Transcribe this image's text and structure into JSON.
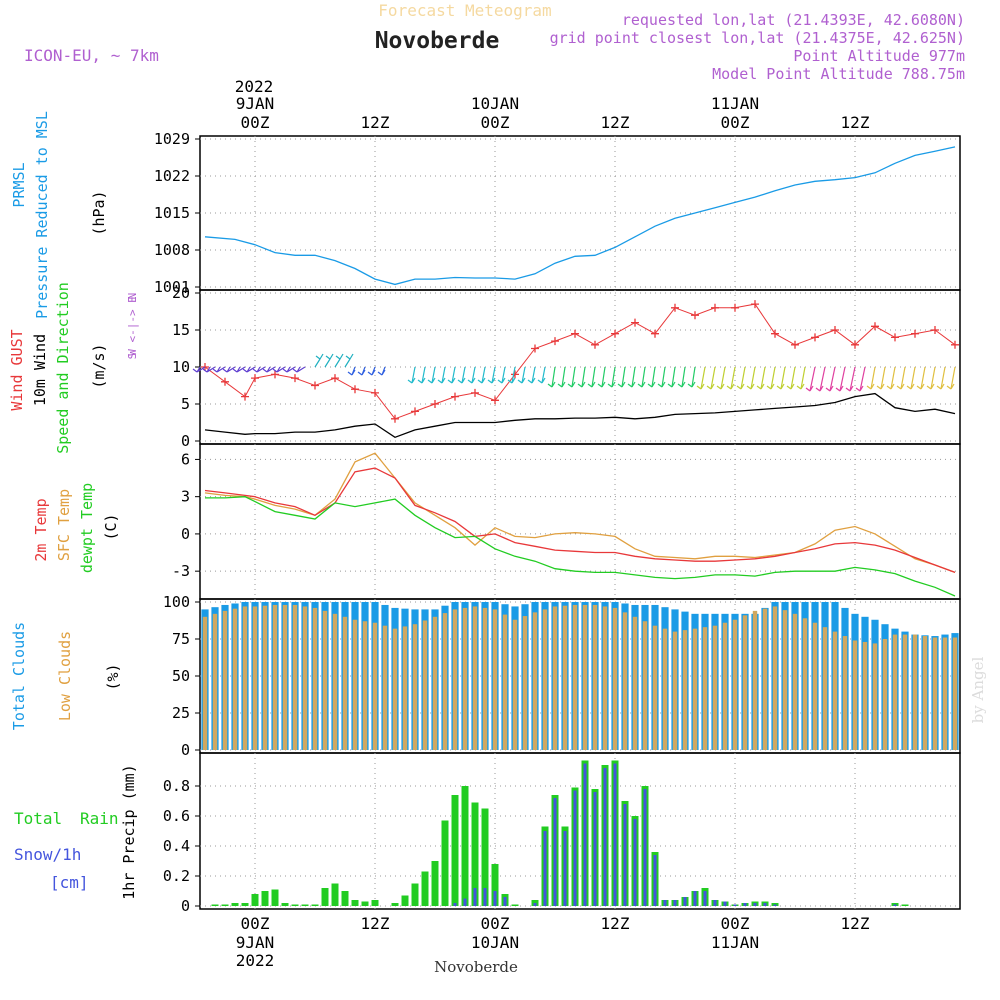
{
  "header": {
    "subtitle": "Forecast Meteogram",
    "location": "Novoberde",
    "model": "ICON-EU, ~ 7km",
    "requested": "requested lon,lat (21.4393E, 42.6080N)",
    "grid_point": "grid point closest lon,lat (21.4375E, 42.625N)",
    "point_alt": "Point Altitude 977m",
    "model_alt": "Model Point Altitude 788.75m",
    "footer_location": "Novoberde",
    "credit": "by Angel"
  },
  "colors": {
    "blue": "#1a9be6",
    "red": "#e8383a",
    "orange": "#e0a040",
    "green": "#22cc22",
    "purple": "#b060d0",
    "black": "#000000",
    "cloud_total": "#1a9be6",
    "cloud_low": "#cfa860",
    "rain": "#22cc22",
    "snow": "#4455dd"
  },
  "time_axis": {
    "top_year": "2022",
    "ticks": [
      {
        "h": 0,
        "top": "9JAN",
        "bot": "00Z"
      },
      {
        "h": 12,
        "top": "",
        "bot": "12Z"
      },
      {
        "h": 24,
        "top": "10JAN",
        "bot": "00Z"
      },
      {
        "h": 36,
        "top": "",
        "bot": "12Z"
      },
      {
        "h": 48,
        "top": "11JAN",
        "bot": "00Z"
      },
      {
        "h": 60,
        "top": "",
        "bot": "12Z"
      }
    ],
    "bottom_ticks": [
      {
        "h": 0,
        "a": "00Z",
        "b": "9JAN",
        "c": "2022"
      },
      {
        "h": 12,
        "a": "12Z",
        "b": "",
        "c": ""
      },
      {
        "h": 24,
        "a": "00Z",
        "b": "10JAN",
        "c": ""
      },
      {
        "h": 36,
        "a": "12Z",
        "b": "",
        "c": ""
      },
      {
        "h": 48,
        "a": "00Z",
        "b": "11JAN",
        "c": ""
      },
      {
        "h": 60,
        "a": "12Z",
        "b": "",
        "c": ""
      }
    ],
    "range": [
      -5.5,
      70.5
    ]
  },
  "panels": {
    "pressure": {
      "title1": "PRMSL",
      "title2": "Pressure Reduced to MSL",
      "unit": "(hPa)",
      "yticks": [
        "1001",
        "1008",
        "1015",
        "1022",
        "1029"
      ],
      "ylim": [
        1001,
        1029
      ]
    },
    "wind": {
      "title_gust": "Wind GUST",
      "title_wind": "10m Wind",
      "title_dir": "Speed and Direction",
      "unit": "(m/s)",
      "yticks": [
        "0",
        "5",
        "10",
        "15",
        "20"
      ],
      "ylim": [
        0,
        20
      ],
      "compass_n": "N",
      "compass_s": "S",
      "compass_we": "W <-|-> E"
    },
    "temp": {
      "title_2m": "2m Temp",
      "title_sfc": "SFC Temp",
      "title_dew": "dewpt Temp",
      "unit": "(C)",
      "yticks": [
        "-3",
        "0",
        "3",
        "6"
      ],
      "ylim": [
        -5,
        7
      ]
    },
    "clouds": {
      "title_total": "Total Clouds",
      "title_low": "Low Clouds",
      "unit": "(%)",
      "yticks": [
        "0",
        "25",
        "50",
        "75",
        "100"
      ],
      "ylim": [
        0,
        100
      ]
    },
    "precip": {
      "title_rain1": "Total",
      "title_rain2": "Rain",
      "title_snow": "Snow/1h",
      "title_cm": "[cm]",
      "unit": "1hr Precip (mm)",
      "yticks": [
        "0",
        "0.2",
        "0.4",
        "0.6",
        "0.8"
      ],
      "ylim": [
        0,
        1
      ]
    }
  },
  "chart_data": [
    {
      "type": "line",
      "title": "PRMSL Pressure Reduced to MSL",
      "ylabel": "hPa",
      "x": [
        -5,
        -2,
        0,
        2,
        4,
        6,
        8,
        10,
        12,
        14,
        16,
        18,
        20,
        22,
        24,
        26,
        28,
        30,
        32,
        34,
        36,
        38,
        40,
        42,
        44,
        46,
        48,
        50,
        52,
        54,
        56,
        58,
        60,
        62,
        64,
        66,
        68,
        70
      ],
      "values": [
        1010.5,
        1010,
        1009,
        1007.5,
        1007,
        1007,
        1006,
        1004.5,
        1002.5,
        1001.5,
        1002.5,
        1002.5,
        1002.8,
        1002.7,
        1002.7,
        1002.5,
        1003.5,
        1005.5,
        1006.8,
        1007,
        1008.5,
        1010.5,
        1012.5,
        1014,
        1015,
        1016,
        1017,
        1018,
        1019.2,
        1020.3,
        1021,
        1021.3,
        1021.7,
        1022.6,
        1024.4,
        1025.9,
        1026.7,
        1027.5
      ]
    },
    {
      "type": "line",
      "title": "Wind GUST / 10m Wind Speed",
      "ylabel": "m/s",
      "x": [
        -5,
        -3,
        -1,
        0,
        2,
        4,
        6,
        8,
        10,
        12,
        14,
        16,
        18,
        20,
        22,
        24,
        26,
        28,
        30,
        32,
        34,
        36,
        38,
        40,
        42,
        44,
        46,
        48,
        50,
        52,
        54,
        56,
        58,
        60,
        62,
        64,
        66,
        68,
        70
      ],
      "series": [
        {
          "name": "Wind GUST",
          "values": [
            10,
            8,
            6,
            8.5,
            9,
            8.5,
            7.5,
            8.5,
            7,
            6.5,
            3,
            4,
            5,
            6,
            6.5,
            5.5,
            9,
            12.5,
            13.5,
            14.5,
            13,
            14.5,
            16,
            14.5,
            18,
            17,
            18,
            18,
            18.5,
            14.5,
            13,
            14,
            15,
            13,
            15.5,
            14,
            14.5,
            15,
            13
          ]
        },
        {
          "name": "10m Wind",
          "values": [
            1.5,
            1.2,
            0.9,
            1,
            1,
            1.2,
            1.2,
            1.5,
            2,
            2.3,
            0.5,
            1.5,
            2,
            2.5,
            2.5,
            2.5,
            2.8,
            3,
            3,
            3.1,
            3.1,
            3.2,
            3,
            3.2,
            3.6,
            3.7,
            3.8,
            4,
            4.2,
            4.4,
            4.6,
            4.8,
            5.2,
            6,
            6.4,
            4.5,
            4,
            4.3,
            3.7
          ]
        }
      ],
      "ylim": [
        0,
        20
      ]
    },
    {
      "type": "line",
      "title": "2m Temp / SFC Temp / dewpt Temp",
      "ylabel": "C",
      "x": [
        -5,
        -3,
        -1,
        0,
        2,
        4,
        6,
        8,
        10,
        12,
        14,
        16,
        18,
        20,
        22,
        24,
        26,
        28,
        30,
        32,
        34,
        36,
        38,
        40,
        42,
        44,
        46,
        48,
        50,
        52,
        54,
        56,
        58,
        60,
        62,
        64,
        66,
        68,
        70
      ],
      "series": [
        {
          "name": "2m Temp",
          "values": [
            3.5,
            3.3,
            3.1,
            3,
            2.5,
            2.2,
            1.5,
            2.5,
            5,
            5.3,
            4.5,
            2.3,
            1.7,
            1,
            -0.2,
            0,
            -0.7,
            -1,
            -1.3,
            -1.4,
            -1.5,
            -1.5,
            -1.8,
            -2,
            -2.1,
            -2.2,
            -2.2,
            -2.1,
            -2,
            -1.8,
            -1.5,
            -1.2,
            -0.8,
            -0.7,
            -0.9,
            -1.3,
            -1.9,
            -2.5,
            -3.1
          ]
        },
        {
          "name": "SFC Temp",
          "values": [
            3.3,
            3.1,
            3,
            2.8,
            2.3,
            2,
            1.5,
            2.8,
            5.8,
            6.5,
            4.5,
            2.5,
            1.5,
            0.5,
            -0.9,
            0.5,
            -0.2,
            -0.3,
            0,
            0.1,
            0,
            -0.2,
            -1.2,
            -1.8,
            -1.9,
            -2,
            -1.8,
            -1.8,
            -1.9,
            -1.7,
            -1.5,
            -0.8,
            0.3,
            0.6,
            0,
            -1,
            -2,
            -2.5,
            -3.1
          ]
        },
        {
          "name": "dewpt Temp",
          "values": [
            2.9,
            2.9,
            3,
            2.6,
            1.8,
            1.5,
            1.2,
            2.5,
            2.2,
            2.5,
            2.8,
            1.5,
            0.5,
            -0.3,
            -0.2,
            -1.2,
            -1.8,
            -2.2,
            -2.8,
            -3,
            -3.1,
            -3.1,
            -3.3,
            -3.5,
            -3.6,
            -3.5,
            -3.3,
            -3.3,
            -3.4,
            -3.1,
            -3,
            -3,
            -3,
            -2.7,
            -2.9,
            -3.2,
            -3.8,
            -4.3,
            -5
          ]
        }
      ],
      "ylim": [
        -5,
        7
      ]
    },
    {
      "type": "bar",
      "title": "Total Clouds / Low Clouds",
      "ylabel": "%",
      "x": [
        -5,
        -3,
        -1,
        0,
        2,
        4,
        6,
        8,
        10,
        12,
        14,
        16,
        18,
        20,
        22,
        24,
        26,
        28,
        30,
        32,
        34,
        36,
        38,
        40,
        42,
        44,
        46,
        48,
        50,
        52,
        54,
        56,
        58,
        60,
        62,
        64,
        66,
        68,
        70
      ],
      "series": [
        {
          "name": "Total Clouds",
          "values": [
            95,
            98,
            100,
            100,
            100,
            100,
            100,
            100,
            100,
            100,
            96,
            95,
            95,
            100,
            100,
            100,
            97,
            100,
            100,
            100,
            100,
            100,
            98,
            98,
            95,
            92,
            92,
            92,
            92,
            100,
            100,
            100,
            100,
            92,
            88,
            82,
            78,
            77,
            79
          ]
        },
        {
          "name": "Low Clouds",
          "values": [
            90,
            94,
            97,
            97,
            98,
            98,
            96,
            92,
            88,
            86,
            82,
            85,
            90,
            95,
            97,
            95,
            88,
            93,
            97,
            98,
            98,
            96,
            90,
            84,
            80,
            82,
            84,
            88,
            94,
            97,
            92,
            86,
            80,
            74,
            72,
            78,
            78,
            76,
            76
          ]
        }
      ],
      "ylim": [
        0,
        100
      ]
    },
    {
      "type": "bar",
      "title": "1hr Precip",
      "ylabel": "1hr Precip (mm)",
      "x": [
        -5,
        -4,
        -3,
        -2,
        -1,
        0,
        1,
        2,
        3,
        4,
        5,
        6,
        7,
        8,
        9,
        10,
        11,
        12,
        13,
        14,
        15,
        16,
        17,
        18,
        19,
        20,
        21,
        22,
        23,
        24,
        25,
        26,
        27,
        28,
        29,
        30,
        31,
        32,
        33,
        34,
        35,
        36,
        37,
        38,
        39,
        40,
        41,
        42,
        43,
        44,
        45,
        46,
        47,
        48,
        49,
        50,
        51,
        52,
        53,
        54,
        55,
        56,
        57,
        58,
        59,
        60,
        61,
        62,
        63,
        64,
        65,
        66,
        67,
        68,
        69,
        70
      ],
      "series": [
        {
          "name": "Total Rain",
          "values": [
            0,
            0.01,
            0.01,
            0.02,
            0.02,
            0.08,
            0.1,
            0.11,
            0.02,
            0.01,
            0.01,
            0.01,
            0.12,
            0.15,
            0.1,
            0.04,
            0.03,
            0.04,
            0,
            0.02,
            0.07,
            0.15,
            0.23,
            0.3,
            0.57,
            0.74,
            0.8,
            0.69,
            0.65,
            0.28,
            0.08,
            0.01,
            0,
            0.04,
            0.53,
            0.74,
            0.53,
            0.79,
            0.97,
            0.78,
            0.94,
            0.97,
            0.7,
            0.6,
            0.8,
            0.36,
            0.04,
            0.04,
            0.06,
            0.1,
            0.12,
            0.04,
            0.03,
            0.01,
            0.02,
            0.03,
            0.03,
            0.02,
            0,
            0,
            0,
            0,
            0,
            0,
            0,
            0,
            0,
            0,
            0,
            0.02,
            0.01,
            0,
            0,
            0,
            0,
            0
          ]
        },
        {
          "name": "Snow/1h",
          "values": [
            0,
            0,
            0,
            0,
            0,
            0,
            0,
            0,
            0,
            0,
            0,
            0,
            0,
            0,
            0,
            0,
            0,
            0,
            0,
            0,
            0,
            0,
            0,
            0,
            0,
            0.02,
            0.05,
            0.12,
            0.12,
            0.1,
            0.06,
            0,
            0,
            0.02,
            0.5,
            0.72,
            0.5,
            0.77,
            0.95,
            0.76,
            0.92,
            0.95,
            0.68,
            0.58,
            0.78,
            0.34,
            0.04,
            0.04,
            0.06,
            0.1,
            0.1,
            0.04,
            0.03,
            0.01,
            0.02,
            0.02,
            0.02,
            0.01,
            0,
            0,
            0,
            0,
            0,
            0,
            0,
            0,
            0,
            0,
            0,
            0.01,
            0,
            0,
            0,
            0,
            0,
            0
          ]
        }
      ],
      "ylim": [
        0,
        1
      ]
    }
  ]
}
